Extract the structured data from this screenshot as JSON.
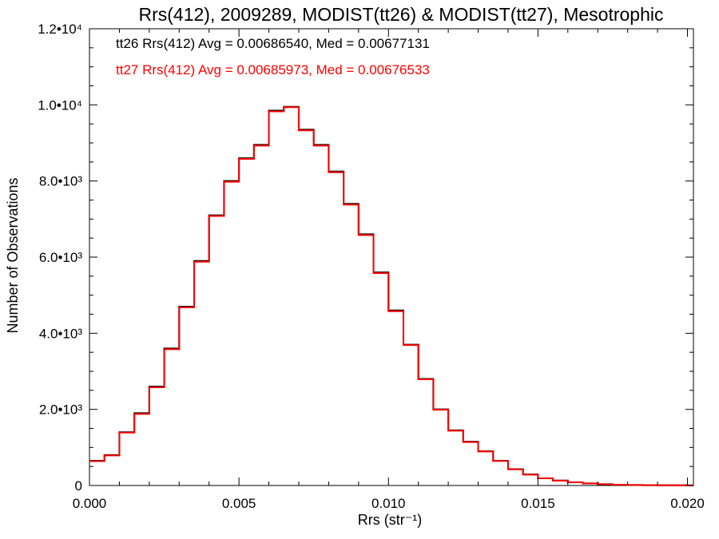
{
  "chart_data": {
    "type": "line",
    "title": "Rrs(412), 2009289, MODIST(tt26) & MODIST(tt27), Mesotrophic",
    "xlabel": "Rrs (str⁻¹)",
    "ylabel": "Number of Observations",
    "xlim": [
      0.0,
      0.0202
    ],
    "ylim": [
      0,
      12000
    ],
    "x_ticks": [
      {
        "value": 0.0,
        "label": "0.000"
      },
      {
        "value": 0.005,
        "label": "0.005"
      },
      {
        "value": 0.01,
        "label": "0.010"
      },
      {
        "value": 0.015,
        "label": "0.015"
      },
      {
        "value": 0.02,
        "label": "0.020"
      }
    ],
    "y_ticks": [
      {
        "value": 0,
        "label": "0"
      },
      {
        "value": 2000,
        "label": "2.0•10³"
      },
      {
        "value": 4000,
        "label": "4.0•10³"
      },
      {
        "value": 6000,
        "label": "6.0•10³"
      },
      {
        "value": 8000,
        "label": "8.0•10³"
      },
      {
        "value": 10000,
        "label": "1.0•10⁴"
      },
      {
        "value": 12000,
        "label": "1.2•10⁴"
      }
    ],
    "grid": false,
    "legend_position": "top-left",
    "x": [
      0.0,
      0.0005,
      0.001,
      0.0015,
      0.002,
      0.0025,
      0.003,
      0.0035,
      0.004,
      0.0045,
      0.005,
      0.0055,
      0.006,
      0.0065,
      0.007,
      0.0075,
      0.008,
      0.0085,
      0.009,
      0.0095,
      0.01,
      0.0105,
      0.011,
      0.0115,
      0.012,
      0.0125,
      0.013,
      0.0135,
      0.014,
      0.0145,
      0.015,
      0.0155,
      0.016,
      0.0165,
      0.017,
      0.0175,
      0.018,
      0.0185,
      0.019,
      0.0195,
      0.02
    ],
    "series": [
      {
        "name": "tt26",
        "color": "#000000",
        "values": [
          650,
          800,
          1400,
          1900,
          2600,
          3600,
          4700,
          5900,
          7100,
          8000,
          8600,
          8950,
          9850,
          9950,
          9350,
          8950,
          8250,
          7400,
          6600,
          5600,
          4600,
          3700,
          2800,
          2000,
          1450,
          1150,
          900,
          650,
          430,
          290,
          190,
          130,
          85,
          55,
          35,
          22,
          14,
          9,
          6,
          4,
          2
        ]
      },
      {
        "name": "tt27",
        "color": "#ff0000",
        "values": [
          640,
          790,
          1390,
          1880,
          2580,
          3580,
          4680,
          5880,
          7080,
          7980,
          8580,
          8930,
          9830,
          9940,
          9330,
          8930,
          8230,
          7380,
          6580,
          5580,
          4580,
          3690,
          2790,
          1990,
          1440,
          1140,
          895,
          645,
          425,
          285,
          188,
          128,
          84,
          54,
          34,
          21,
          13,
          9,
          6,
          4,
          2
        ]
      }
    ],
    "annotations": [
      {
        "text": "tt26 Rrs(412) Avg = 0.00686540, Med = 0.00677131",
        "color": "#000000"
      },
      {
        "text": "tt27 Rrs(412) Avg = 0.00685973, Med = 0.00676533",
        "color": "#ff0000"
      }
    ]
  }
}
